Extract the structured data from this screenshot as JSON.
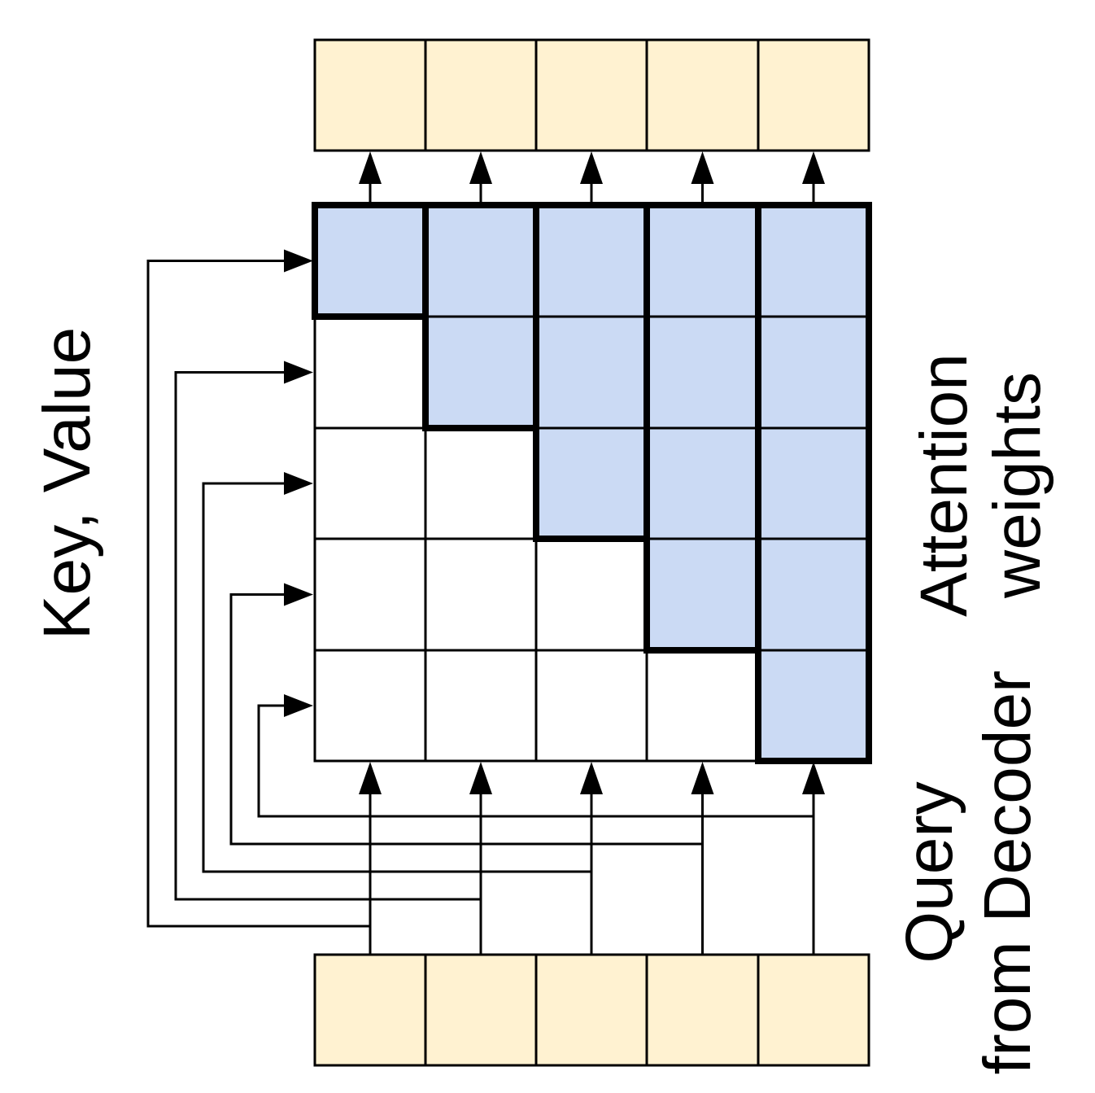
{
  "labels": {
    "key_value": "Key, Value",
    "attention_line1": "Attention",
    "attention_line2": "weights",
    "query_line1": "Query",
    "query_line2": "from Decoder"
  },
  "grid": {
    "size": 5,
    "masked_region": "upper-triangle including diagonal"
  },
  "colors": {
    "token_fill": "#fff2d1",
    "weight_fill": "#cbdaf4",
    "empty_fill": "#ffffff",
    "stroke": "#000000"
  }
}
